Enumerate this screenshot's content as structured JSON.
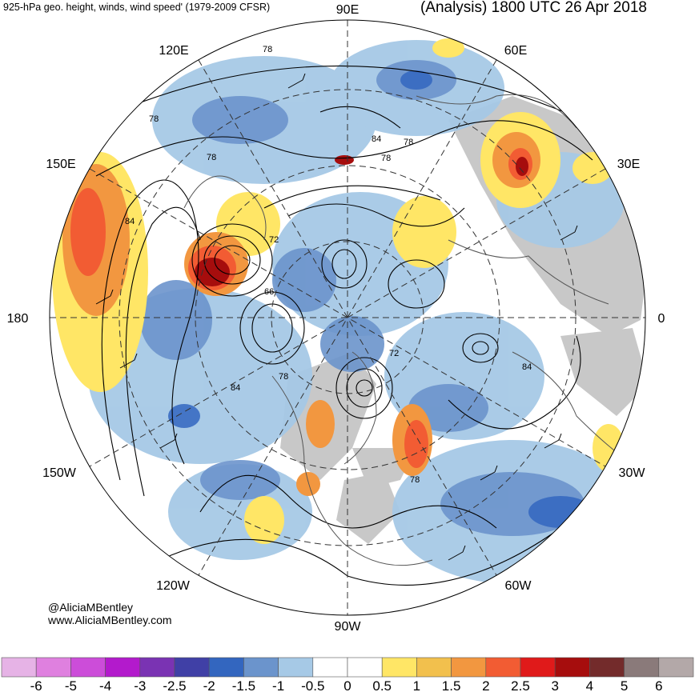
{
  "header": {
    "left_title": "925-hPa geo. height, winds, wind speed' (1979-2009 CFSR)",
    "right_title": "(Analysis) 1800 UTC 26 Apr 2018"
  },
  "credits": {
    "handle": "@AliciaMBentley",
    "website": "www.AliciaMBentley.com"
  },
  "longitude_labels": {
    "lon_90e": "90E",
    "lon_60e": "60E",
    "lon_30e": "30E",
    "lon_0": "0",
    "lon_30w": "30W",
    "lon_60w": "60W",
    "lon_90w": "90W",
    "lon_120w": "120W",
    "lon_150w": "150W",
    "lon_180": "180",
    "lon_150e": "150E",
    "lon_120e": "120E"
  },
  "contour_labels": [
    "78",
    "78",
    "84",
    "78",
    "78",
    "84",
    "72",
    "66",
    "78",
    "84",
    "72",
    "78",
    "84",
    "78"
  ],
  "colorbar": {
    "colors": [
      "#e6b3e6",
      "#df80df",
      "#cc4dd9",
      "#b31acc",
      "#7a33b3",
      "#4040a6",
      "#3366bf",
      "#6b94cc",
      "#a6c9e6",
      "#ffffff",
      "#ffffff",
      "#ffe666",
      "#f2c04d",
      "#f29740",
      "#f25c33",
      "#e01a1a",
      "#a60d0d",
      "#732b2b",
      "#8a7a7a",
      "#b3a8a8"
    ],
    "labels": [
      "-6",
      "-5",
      "-4",
      "-3",
      "-2.5",
      "-2",
      "-1.5",
      "-1",
      "-0.5",
      "0",
      "0.5",
      "1",
      "1.5",
      "2",
      "2.5",
      "3",
      "4",
      "5",
      "6"
    ]
  }
}
